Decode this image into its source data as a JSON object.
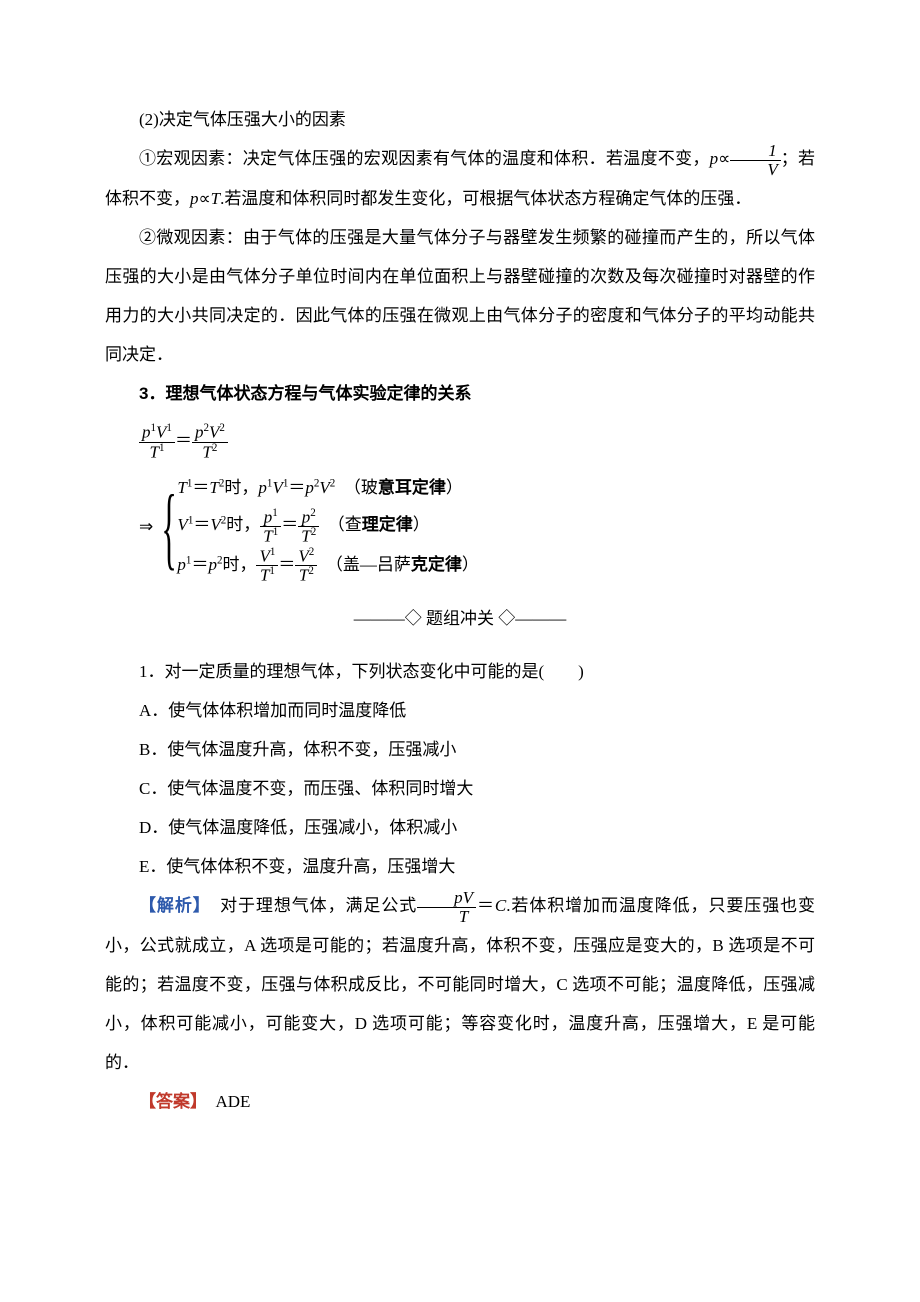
{
  "colors": {
    "text": "#000000",
    "blue": "#2e5aac",
    "red": "#c0392b",
    "bg": "#ffffff"
  },
  "section1": {
    "heading": "(2)决定气体压强大小的因素",
    "p1a": "①宏观因素：决定气体压强的宏观因素有气体的温度和体积．若温度不变，",
    "p1b": "；若体积不变，",
    "p1c": "若温度和体积同时都发生变化，可根据气体状态方程确定气体的压强．",
    "p2": "②微观因素：由于气体的压强是大量气体分子与器壁发生频繁的碰撞而产生的，所以气体压强的大小是由气体分子单位时间内在单位面积上与器壁碰撞的次数及每次碰撞时对器壁的作用力的大小共同决定的．因此气体的压强在微观上由气体分子的密度和气体分子的平均动能共同决定．"
  },
  "section2": {
    "heading": "3．理想气体状态方程与气体实验定律的关系",
    "case1_label": "（玻意耳定律）",
    "case2_label": "（查理定律）",
    "case3_label": "（盖—吕萨克定律）"
  },
  "divider": "———◇ 题组冲关 ◇———",
  "question": {
    "stem": "1．对一定质量的理想气体，下列状态变化中可能的是(　　)",
    "A": "A．使气体体积增加而同时温度降低",
    "B": "B．使气体温度升高，体积不变，压强减小",
    "C": "C．使气体温度不变，而压强、体积同时增大",
    "D": "D．使气体温度降低，压强减小，体积减小",
    "E": "E．使气体体积不变，温度升高，压强增大"
  },
  "analysis": {
    "label": "【解析】",
    "t1": "对于理想气体，满足公式",
    "t2": "＝",
    "t3": "若体积增加而温度降低，只要压强也变小，公式就成立，A 选项是可能的；若温度升高，体积不变，压强应是变大的，B 选项是不可能的；若温度不变，压强与体积成反比，不可能同时增大，C 选项不可能；温度降低，压强减小，体积可能减小，可能变大，D 选项可能；等容变化时，温度升高，压强增大，E 是可能的．"
  },
  "answer": {
    "label": "【答案】",
    "value": "ADE"
  }
}
